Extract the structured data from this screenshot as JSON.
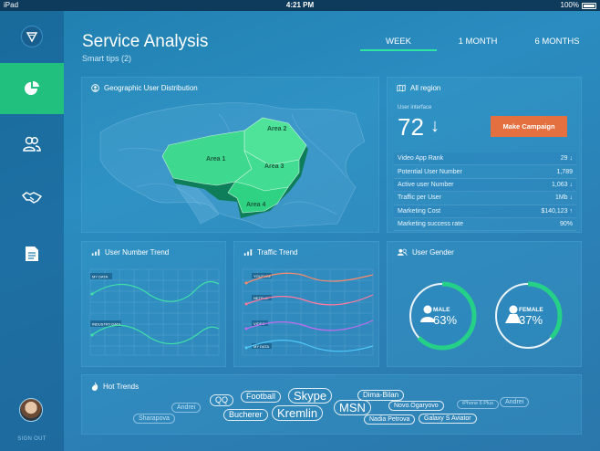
{
  "status_bar": {
    "device": "iPad",
    "time": "4:21 PM",
    "battery": "100%"
  },
  "sidebar": {
    "items": [
      {
        "name": "dashboard",
        "icon": "pie-chart-icon",
        "active": true
      },
      {
        "name": "users",
        "icon": "users-icon",
        "active": false
      },
      {
        "name": "deals",
        "icon": "handshake-icon",
        "active": false
      },
      {
        "name": "reports",
        "icon": "document-icon",
        "active": false
      }
    ],
    "signout_label": "SIGN OUT"
  },
  "header": {
    "title": "Service Analysis",
    "subtitle": "Smart tips (2)",
    "tabs": [
      {
        "label": "WEEK",
        "active": true
      },
      {
        "label": "1 MONTH",
        "active": false
      },
      {
        "label": "6 MONTHS",
        "active": false
      }
    ]
  },
  "geo": {
    "title": "Geographic User Distribution",
    "areas": [
      "Area 1",
      "Area 2",
      "Area 3",
      "Area 4"
    ]
  },
  "region": {
    "title": "All region",
    "ui_label": "User interface",
    "ui_value": "72",
    "ui_trend": "↓",
    "campaign_button": "Make Campaign",
    "stats": [
      {
        "label": "Video App Rank",
        "value": "29 ↓"
      },
      {
        "label": "Potential User Number",
        "value": "1,789"
      },
      {
        "label": "Active user Number",
        "value": "1,063 ↓"
      },
      {
        "label": "Traffic per User",
        "value": "1Mb ↓"
      },
      {
        "label": "Marketing Cost",
        "value": "$140,123 ↑"
      },
      {
        "label": "Marketing success rate",
        "value": "90%"
      }
    ]
  },
  "user_trend": {
    "title": "User Number Trend",
    "series": [
      {
        "name": "MY DATA",
        "color": "#3fe0a8"
      },
      {
        "name": "INDUSTRY DATA",
        "color": "#3fe0a8"
      }
    ]
  },
  "traffic_trend": {
    "title": "Traffic Trend",
    "series": [
      {
        "name": "YOUTUBE",
        "color": "#ff8a6a"
      },
      {
        "name": "NETFLIX",
        "color": "#ff7aa0"
      },
      {
        "name": "VIDEO",
        "color": "#c06cf0"
      },
      {
        "name": "MY DATA",
        "color": "#4fc8f8"
      }
    ]
  },
  "gender": {
    "title": "User Gender",
    "male": {
      "label": "MALE",
      "value": "63%",
      "fraction": 0.63
    },
    "female": {
      "label": "FEMALE",
      "value": "37%",
      "fraction": 0.37
    },
    "ring_color": "#25d088"
  },
  "hot_trends": {
    "title": "Hot Trends",
    "tags": [
      "Andrei",
      "QQ",
      "Football",
      "Skype",
      "Dima-Bilan",
      "Novo.Ogaryovo",
      "iPhone 6 Plus",
      "Andrei",
      "Sharapova",
      "Bucherer",
      "Kremlin",
      "MSN",
      "Nadia Petrova",
      "Galaxy S Aviator"
    ]
  }
}
